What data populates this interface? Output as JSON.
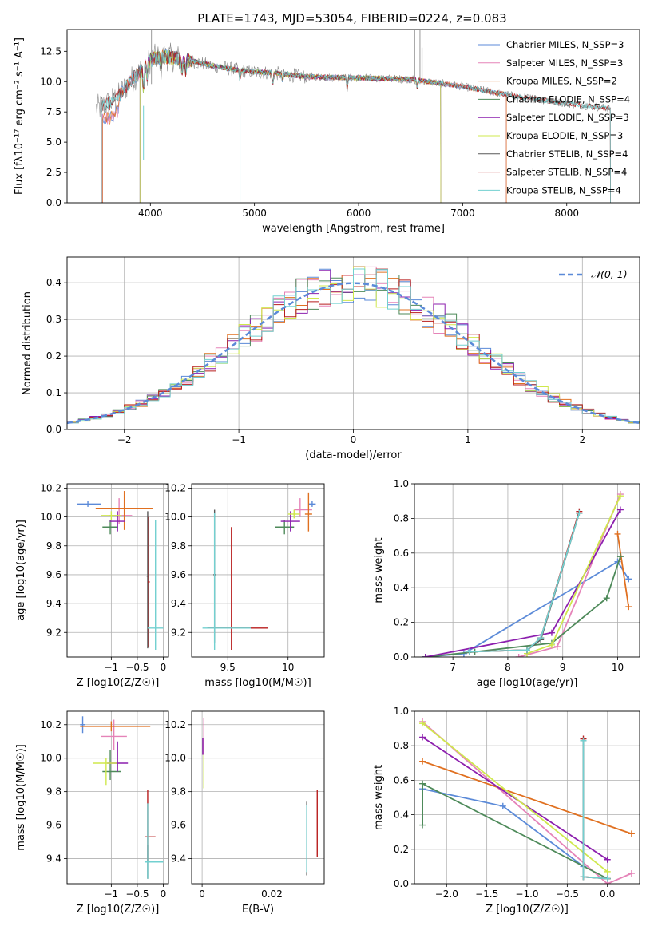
{
  "figure": {
    "title": "PLATE=1743, MJD=53054, FIBERID=0224, z=0.083"
  },
  "colors": {
    "Chabrier MILES": "#5b8ad8",
    "Salpeter MILES": "#e583b8",
    "Kroupa MILES": "#e07020",
    "Chabrier ELODIE": "#4e8a5a",
    "Salpeter ELODIE": "#8c1fae",
    "Kroupa ELODIE": "#cfe84c",
    "Chabrier STELIB": "#595959",
    "Salpeter STELIB": "#b81d1d",
    "Kroupa STELIB": "#72d0d0"
  },
  "chart_data": [
    {
      "type": "line",
      "title": "PLATE=1743, MJD=53054, FIBERID=0224, z=0.083",
      "xlabel": "wavelength [Angstrom, rest frame]",
      "ylabel": "Flux [fλ10⁻¹⁷ erg cm⁻² s⁻¹ A⁻¹]",
      "xlim": [
        3200,
        8700
      ],
      "ylim": [
        0,
        14.3
      ],
      "xticks": [
        4000,
        5000,
        6000,
        7000,
        8000
      ],
      "yticks": [
        0.0,
        2.5,
        5.0,
        7.5,
        10.0,
        12.5
      ],
      "legend_position": "top-right",
      "legend": [
        {
          "name": "Chabrier MILES",
          "nssp": "N_SSP=3"
        },
        {
          "name": "Salpeter MILES",
          "nssp": "N_SSP=3"
        },
        {
          "name": "Kroupa MILES",
          "nssp": "N_SSP=2"
        },
        {
          "name": "Chabrier ELODIE",
          "nssp": "N_SSP=4"
        },
        {
          "name": "Salpeter ELODIE",
          "nssp": "N_SSP=3"
        },
        {
          "name": "Kroupa ELODIE",
          "nssp": "N_SSP=3"
        },
        {
          "name": "Chabrier STELIB",
          "nssp": "N_SSP=4"
        },
        {
          "name": "Salpeter STELIB",
          "nssp": "N_SSP=4"
        },
        {
          "name": "Kroupa STELIB",
          "nssp": "N_SSP=4"
        }
      ],
      "continuum": {
        "x": [
          3500,
          3600,
          3700,
          3800,
          3900,
          4000,
          4100,
          4200,
          4400,
          4600,
          4800,
          5000,
          5200,
          5500,
          6000,
          6500,
          7000,
          7500,
          8000,
          8400
        ],
        "y": [
          7.8,
          8.2,
          8.8,
          10.0,
          10.8,
          11.8,
          12.1,
          12.0,
          11.7,
          11.3,
          11.0,
          10.8,
          10.7,
          10.4,
          10.3,
          10.2,
          9.6,
          8.8,
          8.2,
          7.8
        ]
      }
    },
    {
      "type": "step",
      "xlabel": "(data-model)/error",
      "ylabel": "Normed distribution",
      "xlim": [
        -2.5,
        2.5
      ],
      "ylim": [
        0,
        0.47
      ],
      "xticks": [
        -2,
        -1,
        0,
        1,
        2
      ],
      "yticks": [
        0.0,
        0.1,
        0.2,
        0.3,
        0.4
      ],
      "legend_position": "top-right",
      "gaussian": {
        "label": "𝒩(0, 1)",
        "mean": 0,
        "sigma": 1
      }
    },
    {
      "type": "scatter",
      "xlabel": "Z [log10(Z/Z☉)]",
      "ylabel": "age  [log10(age/yr)]",
      "xlim": [
        -1.85,
        0.1
      ],
      "ylim": [
        9.03,
        10.23
      ],
      "xticks": [
        -1,
        -0.5,
        0
      ],
      "xticklabels": [
        "−1",
        "−0.5",
        "0"
      ],
      "yticks": [
        9.2,
        9.4,
        9.6,
        9.8,
        10.0,
        10.2
      ],
      "points": [
        {
          "series": "Chabrier MILES",
          "x": -1.45,
          "y": 10.09,
          "x_err": [
            0.2,
            0.25
          ],
          "y_err": [
            0.02,
            0.02
          ]
        },
        {
          "series": "Salpeter MILES",
          "x": -0.85,
          "y": 10.01,
          "x_err": [
            0.2,
            0.25
          ],
          "y_err": [
            0.06,
            0.12
          ]
        },
        {
          "series": "Kroupa MILES",
          "x": -0.75,
          "y": 10.06,
          "x_err": [
            0.55,
            0.55
          ],
          "y_err": [
            0.15,
            0.12
          ]
        },
        {
          "series": "Chabrier ELODIE",
          "x": -1.02,
          "y": 9.93,
          "x_err": [
            0.15,
            0.15
          ],
          "y_err": [
            0.05,
            0.05
          ]
        },
        {
          "series": "Salpeter ELODIE",
          "x": -0.88,
          "y": 9.97,
          "x_err": [
            0.15,
            0.15
          ],
          "y_err": [
            0.07,
            0.07
          ]
        },
        {
          "series": "Kroupa ELODIE",
          "x": -1.0,
          "y": 10.01,
          "x_err": [
            0.2,
            0.2
          ],
          "y_err": [
            0.03,
            0.03
          ]
        },
        {
          "series": "Chabrier STELIB",
          "x": -0.3,
          "y": 9.59,
          "x_err": [
            0.02,
            0.02
          ],
          "y_err": [
            0.5,
            0.45
          ]
        },
        {
          "series": "Salpeter STELIB",
          "x": -0.28,
          "y": 9.55,
          "x_err": [
            0.02,
            0.02
          ],
          "y_err": [
            0.45,
            0.45
          ]
        },
        {
          "series": "Kroupa STELIB",
          "x": -0.15,
          "y": 9.23,
          "x_err": [
            0.15,
            0.15
          ],
          "y_err": [
            0.15,
            0.75
          ]
        }
      ]
    },
    {
      "type": "scatter",
      "xlabel": "mass [log10(M/M☉)]",
      "ylabel": "",
      "xlim": [
        9.2,
        10.3
      ],
      "ylim": [
        9.03,
        10.23
      ],
      "xticks": [
        9.5,
        10.0
      ],
      "yticks": [
        9.2,
        9.4,
        9.6,
        9.8,
        10.0,
        10.2
      ],
      "points": [
        {
          "series": "Chabrier MILES",
          "x": 10.2,
          "y": 10.09,
          "x_err": [
            0.03,
            0.03
          ],
          "y_err": [
            0.02,
            0.02
          ]
        },
        {
          "series": "Salpeter MILES",
          "x": 10.1,
          "y": 10.05,
          "x_err": [
            0.05,
            0.1
          ],
          "y_err": [
            0.05,
            0.08
          ]
        },
        {
          "series": "Kroupa MILES",
          "x": 10.17,
          "y": 10.02,
          "x_err": [
            0.03,
            0.03
          ],
          "y_err": [
            0.12,
            0.15
          ]
        },
        {
          "series": "Chabrier ELODIE",
          "x": 9.97,
          "y": 9.93,
          "x_err": [
            0.08,
            0.08
          ],
          "y_err": [
            0.05,
            0.05
          ]
        },
        {
          "series": "Salpeter ELODIE",
          "x": 10.02,
          "y": 9.97,
          "x_err": [
            0.08,
            0.08
          ],
          "y_err": [
            0.07,
            0.07
          ]
        },
        {
          "series": "Kroupa ELODIE",
          "x": 10.05,
          "y": 10.02,
          "x_err": [
            0.05,
            0.05
          ],
          "y_err": [
            0.03,
            0.03
          ]
        },
        {
          "series": "Chabrier STELIB",
          "x": 9.39,
          "y": 9.6,
          "x_err": [
            0.01,
            0.01
          ],
          "y_err": [
            0.47,
            0.45
          ]
        },
        {
          "series": "Salpeter STELIB",
          "x": 9.53,
          "y": 9.23,
          "x_err": [
            0.2,
            0.3
          ],
          "y_err": [
            0.15,
            0.7
          ]
        },
        {
          "series": "Kroupa STELIB",
          "x": 9.39,
          "y": 9.23,
          "x_err": [
            0.1,
            0.3
          ],
          "y_err": [
            0.15,
            0.8
          ]
        }
      ]
    },
    {
      "type": "line",
      "xlabel": "age  [log10(age/yr)]",
      "ylabel": "mass weight",
      "xlim": [
        6.3,
        10.4
      ],
      "ylim": [
        0,
        1.0
      ],
      "xticks": [
        7,
        8,
        9,
        10
      ],
      "yticks": [
        0.0,
        0.2,
        0.4,
        0.6,
        0.8,
        1.0
      ],
      "series": [
        {
          "series": "Chabrier MILES",
          "x": [
            6.5,
            7.2,
            10.0,
            10.2
          ],
          "y": [
            0.0,
            0.02,
            0.55,
            0.45
          ]
        },
        {
          "series": "Salpeter MILES",
          "x": [
            8.2,
            8.9,
            10.05
          ],
          "y": [
            0.0,
            0.06,
            0.94
          ]
        },
        {
          "series": "Kroupa MILES",
          "x": [
            10.0,
            10.2
          ],
          "y": [
            0.71,
            0.29
          ]
        },
        {
          "series": "Chabrier ELODIE",
          "x": [
            6.5,
            7.4,
            8.8,
            9.8,
            10.05
          ],
          "y": [
            0.0,
            0.03,
            0.08,
            0.34,
            0.58
          ]
        },
        {
          "series": "Salpeter ELODIE",
          "x": [
            6.5,
            8.8,
            10.05
          ],
          "y": [
            0.0,
            0.14,
            0.85
          ]
        },
        {
          "series": "Kroupa ELODIE",
          "x": [
            8.35,
            8.8,
            10.05
          ],
          "y": [
            0.02,
            0.07,
            0.93
          ]
        },
        {
          "series": "Chabrier STELIB",
          "x": [
            7.3,
            8.35,
            8.6,
            9.3
          ],
          "y": [
            0.03,
            0.04,
            0.1,
            0.83
          ]
        },
        {
          "series": "Salpeter STELIB",
          "x": [
            7.3,
            8.35,
            8.6,
            9.3
          ],
          "y": [
            0.03,
            0.04,
            0.11,
            0.84
          ]
        },
        {
          "series": "Kroupa STELIB",
          "x": [
            7.3,
            8.35,
            8.6,
            9.3
          ],
          "y": [
            0.03,
            0.04,
            0.11,
            0.83
          ]
        }
      ]
    },
    {
      "type": "scatter",
      "xlabel": "Z [log10(Z/Z☉)]",
      "ylabel": "mass [log10(M/M☉)]",
      "xlim": [
        -1.85,
        0.1
      ],
      "ylim": [
        9.25,
        10.28
      ],
      "xticks": [
        -1,
        -0.5,
        0
      ],
      "xticklabels": [
        "−1",
        "−0.5",
        "0"
      ],
      "yticks": [
        9.4,
        9.6,
        9.8,
        10.0,
        10.2
      ],
      "points": [
        {
          "series": "Chabrier MILES",
          "x": -1.55,
          "y": 10.2,
          "x_err": [
            0.05,
            0.05
          ],
          "y_err": [
            0.05,
            0.05
          ]
        },
        {
          "series": "Salpeter MILES",
          "x": -0.95,
          "y": 10.13,
          "x_err": [
            0.25,
            0.25
          ],
          "y_err": [
            0.08,
            0.1
          ]
        },
        {
          "series": "Kroupa MILES",
          "x": -1.0,
          "y": 10.19,
          "x_err": [
            0.6,
            0.75
          ],
          "y_err": [
            0.03,
            0.03
          ]
        },
        {
          "series": "Chabrier ELODIE",
          "x": -1.02,
          "y": 9.92,
          "x_err": [
            0.15,
            0.2
          ],
          "y_err": [
            0.05,
            0.13
          ]
        },
        {
          "series": "Salpeter ELODIE",
          "x": -0.88,
          "y": 9.97,
          "x_err": [
            0.2,
            0.2
          ],
          "y_err": [
            0.05,
            0.13
          ]
        },
        {
          "series": "Kroupa ELODIE",
          "x": -1.1,
          "y": 9.97,
          "x_err": [
            0.25,
            0.2
          ],
          "y_err": [
            0.13,
            0.03
          ]
        },
        {
          "series": "Chabrier STELIB",
          "x": -0.3,
          "y": 9.38,
          "x_err": [
            0.05,
            0.3
          ],
          "y_err": [
            0.1,
            0.1
          ]
        },
        {
          "series": "Salpeter STELIB",
          "x": -0.3,
          "y": 9.53,
          "x_err": [
            0.05,
            0.15
          ],
          "y_err": [
            0.15,
            0.28
          ]
        },
        {
          "series": "Kroupa STELIB",
          "x": -0.3,
          "y": 9.38,
          "x_err": [
            0.05,
            0.3
          ],
          "y_err": [
            0.1,
            0.35
          ]
        }
      ]
    },
    {
      "type": "scatter",
      "xlabel": "E(B-V)",
      "ylabel": "",
      "xlim": [
        -0.003,
        0.035
      ],
      "ylim": [
        9.25,
        10.28
      ],
      "xticks": [
        0.0,
        0.02
      ],
      "yticks": [
        9.4,
        9.6,
        9.8,
        10.0,
        10.2
      ],
      "points": [
        {
          "series": "Salpeter MILES",
          "x": 0.0005,
          "y": 10.12,
          "x_err": [
            0,
            0
          ],
          "y_err": [
            0.1,
            0.12
          ]
        },
        {
          "series": "Kroupa ELODIE",
          "x": 0.0005,
          "y": 9.92,
          "x_err": [
            0,
            0
          ],
          "y_err": [
            0.1,
            0.1
          ]
        },
        {
          "series": "Salpeter ELODIE",
          "x": 0.0002,
          "y": 10.07,
          "x_err": [
            0,
            0
          ],
          "y_err": [
            0.05,
            0.05
          ]
        },
        {
          "series": "Chabrier STELIB",
          "x": 0.03,
          "y": 9.52,
          "x_err": [
            0,
            0
          ],
          "y_err": [
            0.22,
            0.22
          ]
        },
        {
          "series": "Salpeter STELIB",
          "x": 0.033,
          "y": 9.61,
          "x_err": [
            0,
            0
          ],
          "y_err": [
            0.2,
            0.2
          ]
        },
        {
          "series": "Kroupa STELIB",
          "x": 0.03,
          "y": 9.52,
          "x_err": [
            0,
            0
          ],
          "y_err": [
            0.2,
            0.2
          ]
        }
      ]
    },
    {
      "type": "line",
      "xlabel": "Z [log10(Z/Z☉)]",
      "ylabel": "mass weight",
      "xlim": [
        -2.4,
        0.4
      ],
      "ylim": [
        0,
        1.0
      ],
      "xticks": [
        -2.0,
        -1.5,
        -1.0,
        -0.5,
        0.0
      ],
      "xticklabels": [
        "−2.0",
        "−1.5",
        "−1.0",
        "−0.5",
        "0.0"
      ],
      "yticks": [
        0.0,
        0.2,
        0.4,
        0.6,
        0.8,
        1.0
      ],
      "series": [
        {
          "series": "Chabrier MILES",
          "x": [
            -2.3,
            -1.3,
            -0.3
          ],
          "y": [
            0.55,
            0.45,
            0.1
          ]
        },
        {
          "series": "Salpeter MILES",
          "x": [
            -2.3,
            0.0,
            0.3
          ],
          "y": [
            0.94,
            0.0,
            0.06
          ]
        },
        {
          "series": "Kroupa MILES",
          "x": [
            -2.3,
            0.3
          ],
          "y": [
            0.71,
            0.29
          ]
        },
        {
          "series": "Chabrier ELODIE",
          "x": [
            -2.3,
            -2.3,
            0.0
          ],
          "y": [
            0.34,
            0.58,
            0.03
          ]
        },
        {
          "series": "Salpeter ELODIE",
          "x": [
            -2.3,
            0.0
          ],
          "y": [
            0.85,
            0.14
          ]
        },
        {
          "series": "Kroupa ELODIE",
          "x": [
            -2.3,
            0.0
          ],
          "y": [
            0.93,
            0.07
          ]
        },
        {
          "series": "Chabrier STELIB",
          "x": [
            -0.3,
            -0.3,
            0.0
          ],
          "y": [
            0.83,
            0.04,
            0.03
          ]
        },
        {
          "series": "Salpeter STELIB",
          "x": [
            -0.3,
            -0.3,
            0.0
          ],
          "y": [
            0.84,
            0.04,
            0.03
          ]
        },
        {
          "series": "Kroupa STELIB",
          "x": [
            -0.3,
            -0.3,
            0.0
          ],
          "y": [
            0.83,
            0.04,
            0.03
          ]
        }
      ]
    }
  ]
}
